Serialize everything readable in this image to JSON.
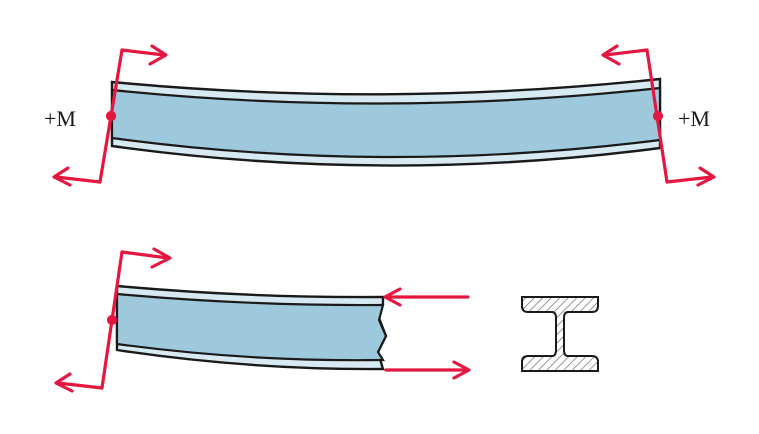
{
  "labels": {
    "moment_left": "+M",
    "moment_right": "+M"
  },
  "colors": {
    "beam_fill": "#9ec8dc",
    "flange_fill": "#d7e9f1",
    "outline": "#1a1a1a",
    "force": "#e3173f",
    "section_hatch": "#6b6b6b",
    "background": "#ffffff"
  },
  "icons": {
    "cross_section": "i-beam-cross-section-icon",
    "force_arrow": "arrow-icon"
  }
}
